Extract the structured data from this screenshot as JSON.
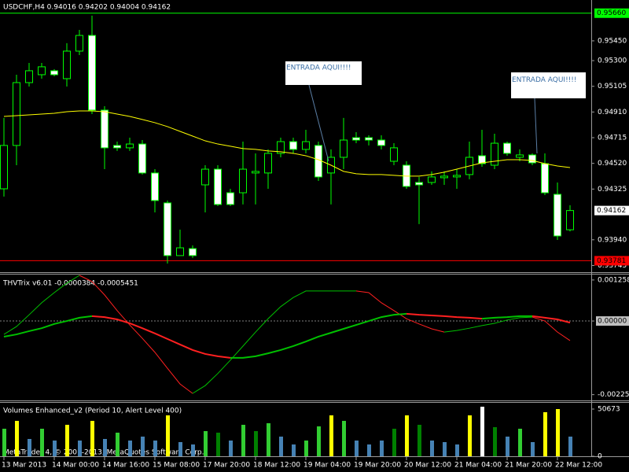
{
  "header": "USDCHF,H4  0.94016 0.94202 0.94004 0.94162",
  "footer": "MetaTrader 4, © 2001-2013, MetaQuotes Software Corp.",
  "chart_data": [
    {
      "type": "candlestick",
      "categories": [
        "13 Mar 2013",
        null,
        null,
        null,
        "14 Mar 00:00",
        null,
        null,
        null,
        "14 Mar 16:00",
        null,
        null,
        null,
        "15 Mar 08:00",
        null,
        null,
        null,
        "17 Mar 20:00",
        null,
        null,
        null,
        "18 Mar 12:00",
        null,
        null,
        null,
        "19 Mar 04:00",
        null,
        null,
        null,
        "19 Mar 20:00",
        null,
        null,
        null,
        "20 Mar 12:00",
        null,
        null,
        null,
        "21 Mar 04:00",
        null,
        null,
        null,
        "21 Mar 20:00",
        null,
        null,
        null,
        "22 Mar 12:00",
        null
      ],
      "open": [
        0.94327,
        0.94656,
        0.95133,
        0.95193,
        0.95223,
        0.95163,
        0.95372,
        0.95491,
        0.94924,
        0.94656,
        0.94638,
        0.94667,
        0.94447,
        0.9422,
        0.9382,
        0.93873,
        0.94357,
        0.94476,
        0.94297,
        0.94297,
        0.94447,
        0.94447,
        0.94596,
        0.94685,
        0.94626,
        0.94656,
        0.94447,
        0.94566,
        0.94715,
        0.94715,
        0.94697,
        0.94536,
        0.94506,
        0.94375,
        0.94375,
        0.94411,
        0.94417,
        0.94435,
        0.94578,
        0.94506,
        0.94673,
        0.94566,
        0.94584,
        0.94518,
        0.94285,
        0.94016
      ],
      "high": [
        0.94865,
        0.95193,
        0.95282,
        0.95282,
        0.95235,
        0.95432,
        0.95533,
        0.95641,
        0.94954,
        0.94685,
        0.94715,
        0.94697,
        0.94476,
        0.94238,
        0.94017,
        0.93897,
        0.94506,
        0.94506,
        0.94327,
        0.94685,
        0.94596,
        0.94626,
        0.94715,
        0.94715,
        0.94775,
        0.94685,
        0.94626,
        0.94865,
        0.94757,
        0.94733,
        0.94733,
        0.94673,
        0.94536,
        0.94417,
        0.94459,
        0.94459,
        0.94476,
        0.94685,
        0.94775,
        0.94745,
        0.94685,
        0.94626,
        0.94596,
        0.94596,
        0.94375,
        0.94202
      ],
      "low": [
        0.94268,
        0.94506,
        0.95103,
        0.95163,
        0.95181,
        0.95103,
        0.95342,
        0.94894,
        0.94476,
        0.94614,
        0.94614,
        0.94435,
        0.94148,
        0.9376,
        0.9382,
        0.93802,
        0.94148,
        0.94196,
        0.94196,
        0.94208,
        0.94208,
        0.94327,
        0.94566,
        0.94596,
        0.94596,
        0.94387,
        0.94208,
        0.94476,
        0.94673,
        0.94656,
        0.94626,
        0.94506,
        0.94327,
        0.94059,
        0.94357,
        0.94357,
        0.94327,
        0.94399,
        0.94494,
        0.94476,
        0.94578,
        0.94536,
        0.94506,
        0.94279,
        0.93939,
        0.94004
      ],
      "close": [
        0.94656,
        0.95133,
        0.95223,
        0.95253,
        0.95193,
        0.95372,
        0.95491,
        0.94924,
        0.94638,
        0.94638,
        0.94667,
        0.94447,
        0.94238,
        0.9382,
        0.93879,
        0.9382,
        0.94476,
        0.94208,
        0.94208,
        0.94476,
        0.94459,
        0.94596,
        0.94685,
        0.94626,
        0.94685,
        0.94417,
        0.94566,
        0.94697,
        0.94697,
        0.94697,
        0.94656,
        0.94638,
        0.94345,
        0.94357,
        0.94417,
        0.94423,
        0.94429,
        0.94566,
        0.94518,
        0.94673,
        0.94596,
        0.94584,
        0.94524,
        0.94297,
        0.93969,
        0.94162
      ],
      "bull_color": "#000000",
      "bear_color": "#ffffff",
      "wick_color": "#00ff00",
      "ma": {
        "color": "#ffff00",
        "values": [
          0.94876,
          0.94882,
          0.94888,
          0.94894,
          0.949,
          0.94912,
          0.94918,
          0.94918,
          0.94912,
          0.94894,
          0.94876,
          0.94853,
          0.94829,
          0.94799,
          0.94763,
          0.94727,
          0.94691,
          0.94667,
          0.9465,
          0.94632,
          0.94626,
          0.94614,
          0.94608,
          0.94596,
          0.94578,
          0.94548,
          0.94506,
          0.94459,
          0.94441,
          0.94435,
          0.94435,
          0.94429,
          0.94423,
          0.94423,
          0.94435,
          0.94453,
          0.94476,
          0.945,
          0.94524,
          0.94536,
          0.94548,
          0.94548,
          0.94542,
          0.94518,
          0.945,
          0.94488
        ]
      },
      "ylim": [
        0.937,
        0.9576
      ],
      "yticks": [
        {
          "value": 0.9545,
          "label": "0.95450"
        },
        {
          "value": 0.953,
          "label": "0.95300"
        },
        0.95105,
        {
          "value": 0.9491,
          "label": "0.94910"
        },
        0.94715,
        {
          "value": 0.9452,
          "label": "0.94520"
        },
        0.94325,
        {
          "value": 0.9394,
          "label": "0.93940"
        },
        0.93745
      ],
      "hlines": [
        {
          "value": 0.9566,
          "label": "0.95660",
          "color": "#00ff00"
        },
        {
          "value": 0.93781,
          "color": "#ff0000"
        }
      ],
      "last_price": 0.94162,
      "annotations": [
        "ENTRADA AQUI!!!!",
        "ENTRADA AQUI!!!!"
      ]
    },
    {
      "type": "trix",
      "title": "THVTrix v6.01 -0.0000384 -0.0005451",
      "up_color": "#00c000",
      "down_color": "#ff2020",
      "lines": [
        {
          "values": [
            -0.00041,
            -0.00017,
            0.00019,
            0.00056,
            0.00087,
            0.00116,
            0.0014,
            0.00121,
            0.0008,
            0.00032,
            -0.00012,
            -0.00053,
            -0.00096,
            -0.00145,
            -0.00193,
            -0.00222,
            -0.00198,
            -0.00161,
            -0.0012,
            -0.00077,
            -0.00034,
            7e-05,
            0.00044,
            0.00072,
            0.00092,
            0.00092,
            0.00092,
            0.00092,
            0.00092,
            0.00087,
            0.00056,
            0.00032,
            7e-05,
            -9e-05,
            -0.00024,
            -0.00034,
            -0.00029,
            -0.00022,
            -0.00014,
            -7e-05,
            3e-05,
            0.0001,
            0.00012,
            0,
            -0.00034,
            -0.0006
          ],
          "width": 1
        },
        {
          "values": [
            -0.00048,
            -0.00041,
            -0.00031,
            -0.00022,
            -9e-05,
            0,
            0.0001,
            0.00015,
            0.00012,
            5e-05,
            -7e-05,
            -0.00022,
            -0.00038,
            -0.00055,
            -0.00072,
            -0.00089,
            -0.00101,
            -0.00108,
            -0.00113,
            -0.00113,
            -0.00108,
            -0.00099,
            -0.00089,
            -0.00077,
            -0.00063,
            -0.00048,
            -0.00036,
            -0.00024,
            -0.00012,
            0,
            0.00012,
            0.00019,
            0.00022,
            0.00019,
            0.00017,
            0.00015,
            0.00012,
            0.0001,
            7e-05,
            0.0001,
            0.00012,
            0.00015,
            0.00015,
            0.0001,
            5e-05,
            -5e-05
          ],
          "width": 2
        }
      ],
      "ylim": [
        -0.00241,
        0.0014
      ],
      "yticks": [
        0.001258,
        {
          "value": 0,
          "label": "0.00000"
        },
        -0.002257
      ]
    },
    {
      "type": "volume",
      "title": "Volumes Enhanced_v2  (Period 10, Alert Level 400)",
      "values": [
        29559,
        38005,
        18580,
        29559,
        16891,
        33782,
        16891,
        38005,
        18580,
        25337,
        16891,
        21114,
        16891,
        43917,
        15202,
        12668,
        27026,
        25337,
        16891,
        33782,
        27026,
        35471,
        21114,
        12668,
        16891,
        32093,
        43917,
        38005,
        16891,
        12668,
        16891,
        29559,
        43917,
        33782,
        16891,
        15202,
        12668,
        43917,
        53207,
        31248,
        21114,
        29559,
        15202,
        47295,
        50673,
        21114
      ],
      "colors": [
        "#32cd32",
        "#ffff00",
        "#4682b4",
        "#32cd32",
        "#4682b4",
        "#ffff00",
        "#4682b4",
        "#ffff00",
        "#4682b4",
        "#32cd32",
        "#4682b4",
        "#4682b4",
        "#4682b4",
        "#ffff00",
        "#4682b4",
        "#4682b4",
        "#32cd32",
        "#008000",
        "#4682b4",
        "#32cd32",
        "#008000",
        "#32cd32",
        "#4682b4",
        "#4682b4",
        "#32cd32",
        "#32cd32",
        "#ffff00",
        "#32cd32",
        "#4682b4",
        "#4682b4",
        "#4682b4",
        "#008000",
        "#ffff00",
        "#008000",
        "#4682b4",
        "#4682b4",
        "#4682b4",
        "#ffff00",
        "#ffffff",
        "#008000",
        "#4682b4",
        "#32cd32",
        "#4682b4",
        "#ffff00",
        "#ffff00",
        "#4682b4"
      ],
      "ylim": [
        0,
        57430
      ],
      "yticks": [
        0,
        50673
      ]
    }
  ]
}
